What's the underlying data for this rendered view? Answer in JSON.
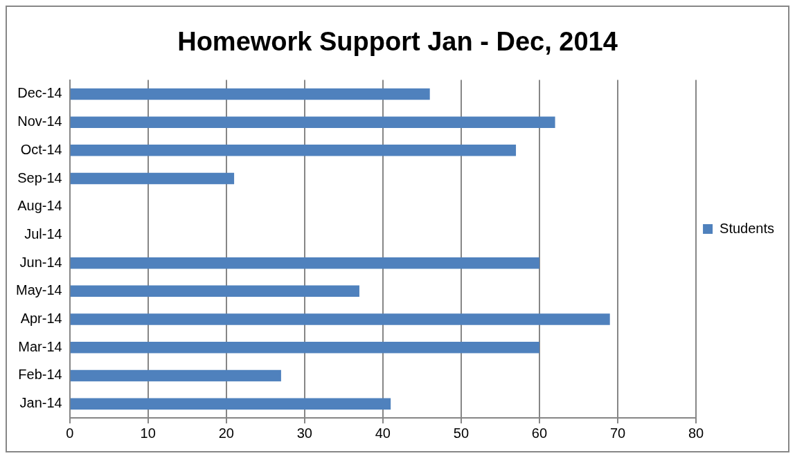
{
  "chart_data": {
    "type": "bar",
    "orientation": "horizontal",
    "title": "Homework Support Jan - Dec, 2014",
    "categories": [
      "Dec-14",
      "Nov-14",
      "Oct-14",
      "Sep-14",
      "Aug-14",
      "Jul-14",
      "Jun-14",
      "May-14",
      "Apr-14",
      "Mar-14",
      "Feb-14",
      "Jan-14"
    ],
    "series": [
      {
        "name": "Students",
        "color": "#4f81bd",
        "values": [
          46,
          62,
          57,
          21,
          null,
          null,
          60,
          37,
          69,
          60,
          27,
          41
        ]
      }
    ],
    "xlim": [
      0,
      80
    ],
    "xticks": [
      0,
      10,
      20,
      30,
      40,
      50,
      60,
      70,
      80
    ],
    "grid": "x",
    "legend": "right"
  }
}
